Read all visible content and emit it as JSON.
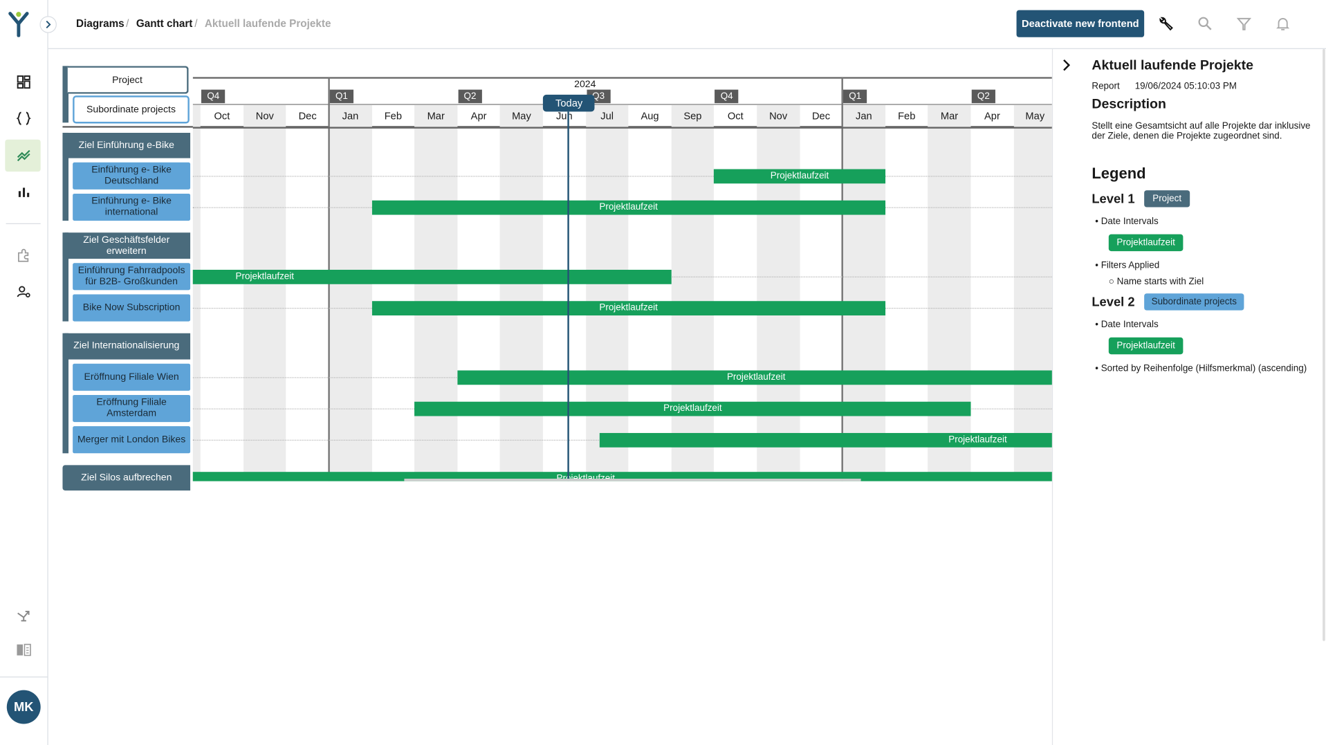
{
  "sidebar": {
    "logo": "Y",
    "expand_icon": "chevron-right-icon",
    "items": [
      {
        "icon": "dashboard-icon",
        "active": false
      },
      {
        "icon": "code-braces-icon",
        "active": false
      },
      {
        "icon": "chart-line-icon",
        "active": true
      },
      {
        "icon": "bar-chart-icon",
        "active": false
      },
      {
        "icon": "puzzle-icon",
        "active": false
      },
      {
        "icon": "user-settings-icon",
        "active": false
      },
      {
        "icon": "merge-arrow-icon",
        "active": false
      },
      {
        "icon": "book-icon",
        "active": false
      }
    ],
    "avatar": "MK",
    "active_bg": "#e4f0d9"
  },
  "breadcrumb": [
    "Diagrams",
    "Gantt chart",
    "Aktuell laufende Projekte"
  ],
  "toolbar": {
    "deactivate_label": "Deactivate new frontend",
    "icons": [
      "wrench-icon",
      "search-icon",
      "filter-icon",
      "bell-icon"
    ]
  },
  "gantt": {
    "header": {
      "level1": "Project",
      "level2": "Subordinate projects"
    },
    "today_label": "Today",
    "today": "2024-06-19",
    "year_label": "2024",
    "months": [
      "Oct",
      "Nov",
      "Dec",
      "Jan",
      "Feb",
      "Mar",
      "Apr",
      "May",
      "Jun",
      "Jul",
      "Aug",
      "Sep",
      "Oct",
      "Nov",
      "Dec",
      "Jan",
      "Feb",
      "Mar",
      "Apr",
      "May"
    ],
    "quarters": [
      {
        "label": "Q4",
        "month": 0
      },
      {
        "label": "Q1",
        "month": 3
      },
      {
        "label": "Q2",
        "month": 6
      },
      {
        "label": "Q3",
        "month": 9
      },
      {
        "label": "Q4",
        "month": 12
      },
      {
        "label": "Q1",
        "month": 15
      },
      {
        "label": "Q2",
        "month": 18
      }
    ],
    "range_start": "2023-10-01",
    "colors": {
      "group": "#4a6b7c",
      "child": "#5fa4d8",
      "bar": "#16a05b",
      "today": "#235475"
    },
    "groups": [
      {
        "label": "Ziel Einführung e-Bike",
        "children": [
          {
            "label": "Einführung e- Bike Deutschland",
            "bar": {
              "label": "Projektlaufzeit",
              "start": "2024-10-01",
              "end": "2025-02-01"
            }
          },
          {
            "label": "Einführung e- Bike international",
            "bar": {
              "label": "Projektlaufzeit",
              "start": "2024-02-01",
              "end": "2025-02-01"
            }
          }
        ]
      },
      {
        "label": "Ziel Geschäftsfelder erweitern",
        "children": [
          {
            "label": "Einführung Fahrradpools für B2B- Großkunden",
            "bar": {
              "label": "Projektlaufzeit",
              "start": "2023-02-01",
              "end": "2024-09-01"
            }
          },
          {
            "label": "Bike Now Subscription",
            "bar": {
              "label": "Projektlaufzeit",
              "start": "2024-02-01",
              "end": "2025-02-01"
            }
          }
        ]
      },
      {
        "label": "Ziel Internationalisierung",
        "children": [
          {
            "label": "Eröffnung Filiale Wien",
            "bar": {
              "label": "Projektlaufzeit",
              "start": "2024-04-01",
              "end": "2025-05-31"
            }
          },
          {
            "label": "Eröffnung Filiale Amsterdam",
            "bar": {
              "label": "Projektlaufzeit",
              "start": "2024-03-01",
              "end": "2025-04-01"
            }
          },
          {
            "label": "Merger mit London Bikes",
            "bar": {
              "label": "Projektlaufzeit",
              "start": "2024-07-11",
              "end": "2026-01-01"
            }
          }
        ]
      },
      {
        "label": "Ziel Silos aufbrechen",
        "bar": {
          "label": "Projektlaufzeit",
          "start": "2023-08-01",
          "end": "2025-06-01"
        },
        "children": []
      }
    ]
  },
  "panel": {
    "collapse_icon": "chevron-right-icon",
    "title": "Aktuell laufende Projekte",
    "report_label": "Report",
    "report_date": "19/06/2024 05:10:03 PM",
    "description_heading": "Description",
    "description": "Stellt eine Gesamtsicht auf alle Projekte dar inklusive der Ziele, denen die Projekte zugeordnet sind.",
    "legend_heading": "Legend",
    "level1": {
      "label": "Level 1",
      "badge": "Project",
      "date_intervals": "Date Intervals",
      "interval_badge": "Projektlaufzeit",
      "filters": "Filters Applied",
      "filter_item": "Name starts with Ziel"
    },
    "level2": {
      "label": "Level 2",
      "badge": "Subordinate projects",
      "date_intervals": "Date Intervals",
      "interval_badge": "Projektlaufzeit",
      "sorted": "Sorted by Reihenfolge (Hilfsmerkmal) (ascending)"
    }
  }
}
